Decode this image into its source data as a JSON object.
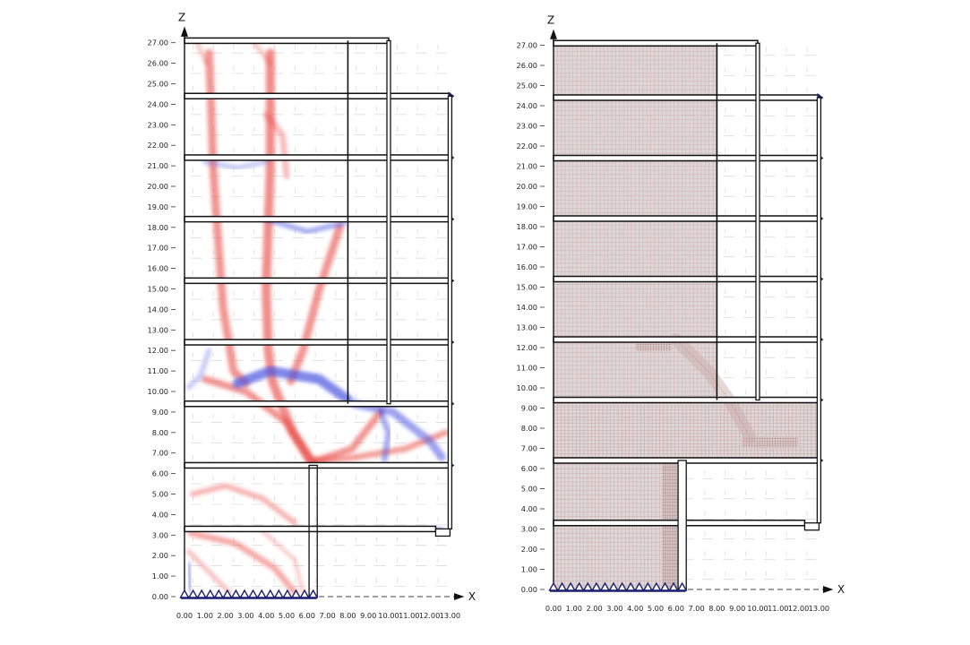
{
  "panels": [
    {
      "id": "left",
      "x_axis_label": "X",
      "z_axis_label": "Z",
      "z_ticks": [
        "0.00",
        "1.00",
        "2.00",
        "3.00",
        "4.00",
        "5.00",
        "6.00",
        "7.00",
        "8.00",
        "9.00",
        "10.00",
        "11.00",
        "12.00",
        "13.00",
        "14.00",
        "15.00",
        "16.00",
        "17.00",
        "18.00",
        "19.00",
        "20.00",
        "21.00",
        "22.00",
        "23.00",
        "24.00",
        "25.00",
        "26.00",
        "27.00"
      ],
      "x_ticks": [
        "0.00",
        "1.00",
        "2.00",
        "3.00",
        "4.00",
        "5.00",
        "6.00",
        "7.00",
        "8.00",
        "9.00",
        "10.00",
        "11.00",
        "12.00",
        "13.00"
      ]
    },
    {
      "id": "right",
      "x_axis_label": "X",
      "z_axis_label": "Z",
      "z_ticks": [
        "0.00",
        "1.00",
        "2.00",
        "3.00",
        "4.00",
        "5.00",
        "6.00",
        "7.00",
        "8.00",
        "9.00",
        "10.00",
        "11.00",
        "12.00",
        "13.00",
        "14.00",
        "15.00",
        "16.00",
        "17.00",
        "18.00",
        "19.00",
        "20.00",
        "21.00",
        "22.00",
        "23.00",
        "24.00",
        "25.00",
        "26.00",
        "27.00"
      ],
      "x_ticks": [
        "0.00",
        "1.00",
        "2.00",
        "3.00",
        "4.00",
        "5.00",
        "6.00",
        "7.00",
        "8.00",
        "9.00",
        "10.00",
        "11.00",
        "12.00",
        "13.00"
      ]
    }
  ],
  "model": {
    "floor_levels": [
      3.3,
      6.4,
      9.4,
      12.4,
      15.4,
      18.4,
      21.4,
      24.4
    ],
    "roof_level": 27.1,
    "x_max": 13.0,
    "support_x_range": [
      0.0,
      6.3
    ],
    "support_count": 16
  },
  "colors": {
    "tension": "#e8403a",
    "compression": "#4a56e0",
    "structure": "#111111",
    "mesh_fill": "#d9cfcf",
    "mesh_line": "#a06060",
    "support": "#1a1f6e"
  }
}
